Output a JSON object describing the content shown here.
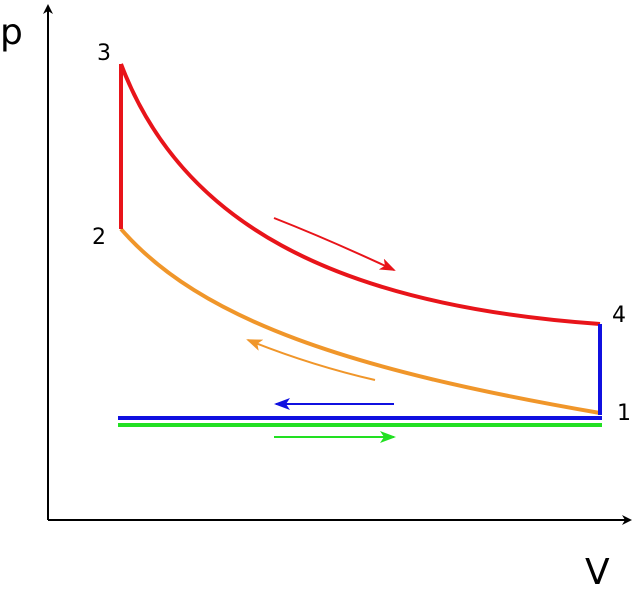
{
  "axes": {
    "y_label": "p",
    "x_label": "V"
  },
  "points": [
    {
      "label": "1"
    },
    {
      "label": "2"
    },
    {
      "label": "3"
    },
    {
      "label": "4"
    }
  ]
}
